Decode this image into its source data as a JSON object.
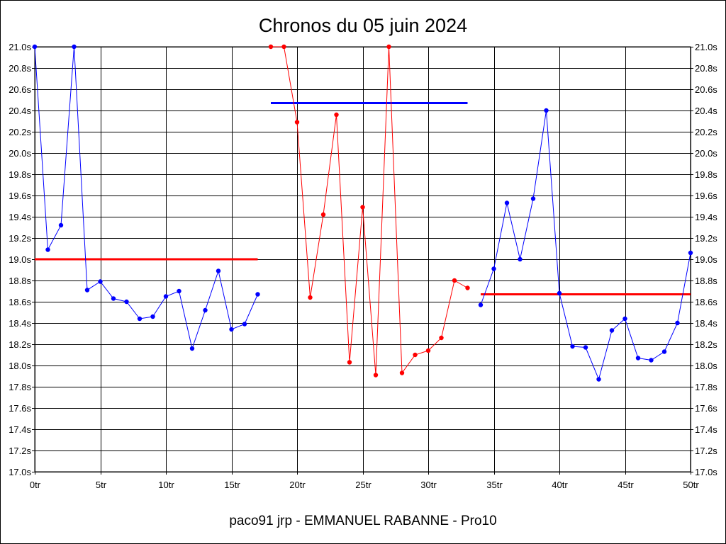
{
  "chart_data": {
    "type": "line",
    "title": "Chronos du 05 juin 2024",
    "subtitle": "paco91 jrp - EMMANUEL RABANNE - Pro10",
    "xlabel": "",
    "ylabel": "",
    "xlim": [
      0,
      50
    ],
    "ylim": [
      17.0,
      21.0
    ],
    "grid": true,
    "x_ticks": [
      {
        "value": 0,
        "label": "0tr"
      },
      {
        "value": 5,
        "label": "5tr"
      },
      {
        "value": 10,
        "label": "10tr"
      },
      {
        "value": 15,
        "label": "15tr"
      },
      {
        "value": 20,
        "label": "20tr"
      },
      {
        "value": 25,
        "label": "25tr"
      },
      {
        "value": 30,
        "label": "30tr"
      },
      {
        "value": 35,
        "label": "35tr"
      },
      {
        "value": 40,
        "label": "40tr"
      },
      {
        "value": 45,
        "label": "45tr"
      },
      {
        "value": 50,
        "label": "50tr"
      }
    ],
    "y_ticks": [
      {
        "value": 17.0,
        "label": "17.0s"
      },
      {
        "value": 17.2,
        "label": "17.2s"
      },
      {
        "value": 17.4,
        "label": "17.4s"
      },
      {
        "value": 17.6,
        "label": "17.6s"
      },
      {
        "value": 17.8,
        "label": "17.8s"
      },
      {
        "value": 18.0,
        "label": "18.0s"
      },
      {
        "value": 18.2,
        "label": "18.2s"
      },
      {
        "value": 18.4,
        "label": "18.4s"
      },
      {
        "value": 18.6,
        "label": "18.6s"
      },
      {
        "value": 18.8,
        "label": "18.8s"
      },
      {
        "value": 19.0,
        "label": "19.0s"
      },
      {
        "value": 19.2,
        "label": "19.2s"
      },
      {
        "value": 19.4,
        "label": "19.4s"
      },
      {
        "value": 19.6,
        "label": "19.6s"
      },
      {
        "value": 19.8,
        "label": "19.8s"
      },
      {
        "value": 20.0,
        "label": "20.0s"
      },
      {
        "value": 20.2,
        "label": "20.2s"
      },
      {
        "value": 20.4,
        "label": "20.4s"
      },
      {
        "value": 20.6,
        "label": "20.6s"
      },
      {
        "value": 20.8,
        "label": "20.8s"
      },
      {
        "value": 21.0,
        "label": "21.0s"
      }
    ],
    "series": [
      {
        "color": "#0000ff",
        "x": [
          0,
          1,
          2,
          3,
          4,
          5,
          6,
          7,
          8,
          9,
          10,
          11,
          12,
          13,
          14,
          15,
          16,
          17
        ],
        "values": [
          21.0,
          19.09,
          19.32,
          21.0,
          18.71,
          18.79,
          18.63,
          18.6,
          18.44,
          18.46,
          18.65,
          18.7,
          18.16,
          18.52,
          18.89,
          18.34,
          18.39,
          18.67
        ]
      },
      {
        "color": "#ff0000",
        "x": [
          18,
          19,
          20,
          21,
          22,
          23,
          24,
          25,
          26,
          27,
          28,
          29,
          30,
          31,
          32,
          33
        ],
        "values": [
          21.0,
          21.0,
          20.29,
          18.64,
          19.42,
          20.36,
          18.03,
          19.49,
          17.91,
          21.0,
          17.93,
          18.1,
          18.14,
          18.26,
          18.8,
          18.73
        ]
      },
      {
        "color": "#0000ff",
        "x": [
          34,
          35,
          36,
          37,
          38,
          39,
          40,
          41,
          42,
          43,
          44,
          45,
          46,
          47,
          48,
          49,
          50
        ],
        "values": [
          18.57,
          18.91,
          19.53,
          19.0,
          19.57,
          20.4,
          18.68,
          18.18,
          18.17,
          17.87,
          18.33,
          18.44,
          18.07,
          18.05,
          18.13,
          18.4,
          19.06
        ]
      }
    ],
    "average_lines": [
      {
        "color": "#ff0000",
        "x": [
          0,
          17
        ],
        "value": 19.0
      },
      {
        "color": "#0000ff",
        "x": [
          18,
          33
        ],
        "value": 20.47
      },
      {
        "color": "#ff0000",
        "x": [
          34,
          50
        ],
        "value": 18.67
      }
    ]
  }
}
